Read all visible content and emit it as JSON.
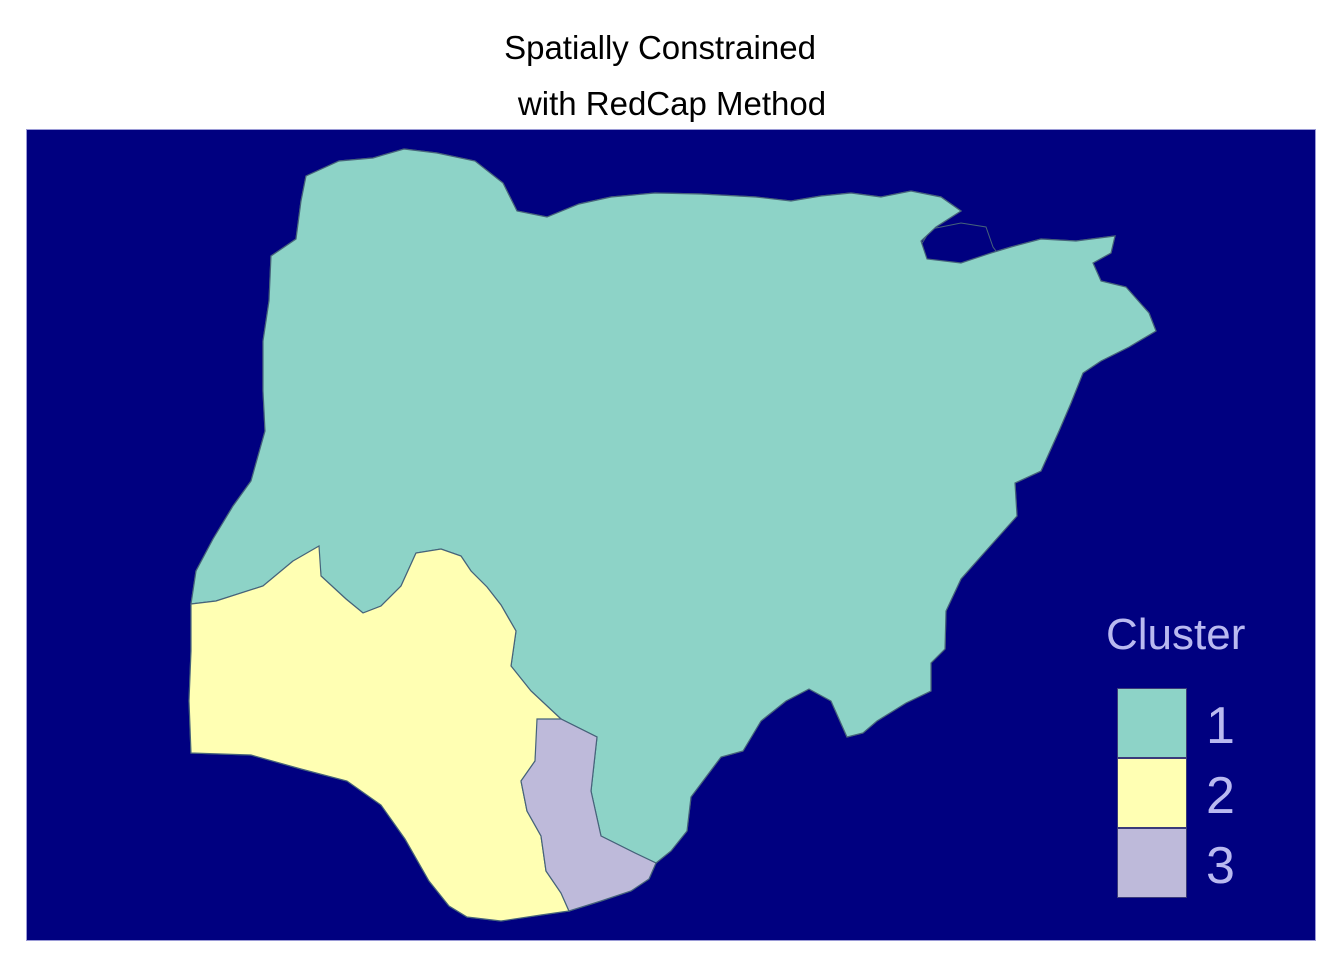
{
  "title": {
    "line1": "Spatially Constrained",
    "line2": " with RedCap Method"
  },
  "colors": {
    "panel_background": "#000080",
    "panel_border": "#9a9ad6",
    "boundary": "#46637a",
    "legend_text": "#b9b9f0",
    "cluster_1": "#8dd3c7",
    "cluster_2": "#ffffb3",
    "cluster_3": "#bebada"
  },
  "legend": {
    "title": "Cluster",
    "items": [
      {
        "label": "1",
        "color": "#8dd3c7"
      },
      {
        "label": "2",
        "color": "#ffffb3"
      },
      {
        "label": "3",
        "color": "#bebada"
      }
    ]
  }
}
